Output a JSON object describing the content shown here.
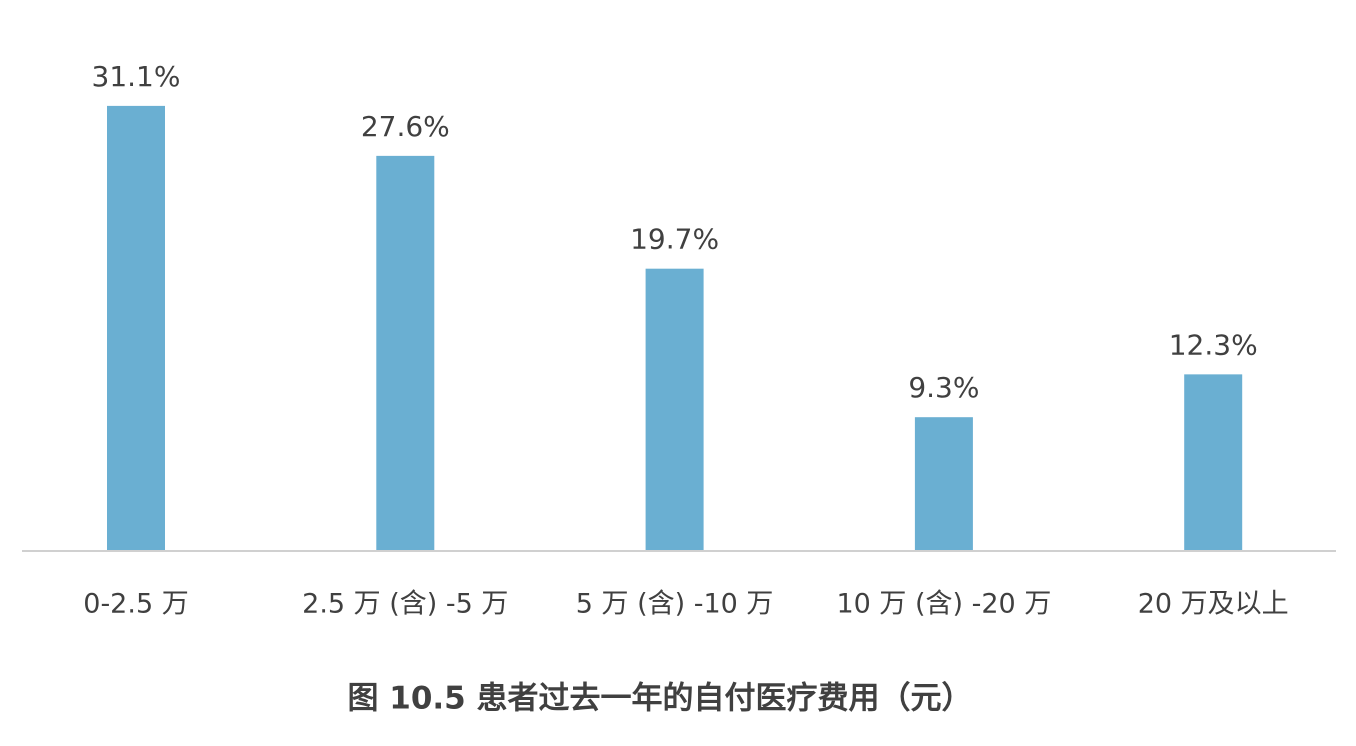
{
  "chart_data": {
    "type": "bar",
    "title": "图 10.5 患者过去一年的自付医疗费用（元）",
    "categories": [
      "0-2.5 万",
      "2.5 万 (含) -5 万",
      "5 万 (含) -10 万",
      "10 万 (含) -20 万",
      "20 万及以上"
    ],
    "values": [
      31.1,
      27.6,
      19.7,
      9.3,
      12.3
    ],
    "value_labels": [
      "31.1%",
      "27.6%",
      "19.7%",
      "9.3%",
      "12.3%"
    ],
    "color": "#6aafd2"
  }
}
